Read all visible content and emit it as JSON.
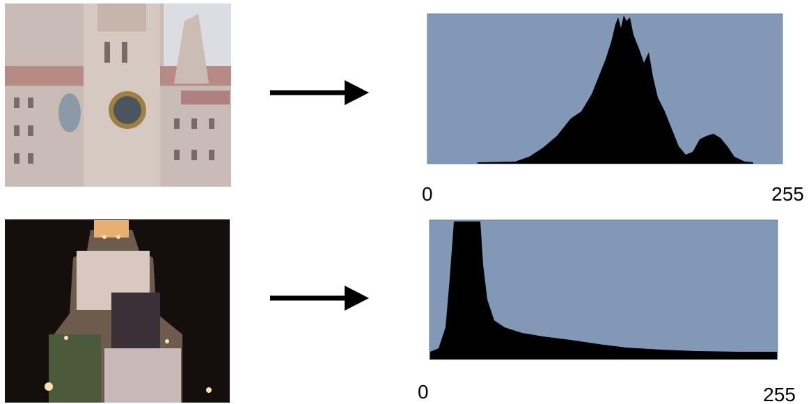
{
  "panels": [
    {
      "histogram": {
        "min_label": "0",
        "max_label": "255"
      }
    },
    {
      "histogram": {
        "min_label": "0",
        "max_label": "255"
      }
    }
  ]
}
